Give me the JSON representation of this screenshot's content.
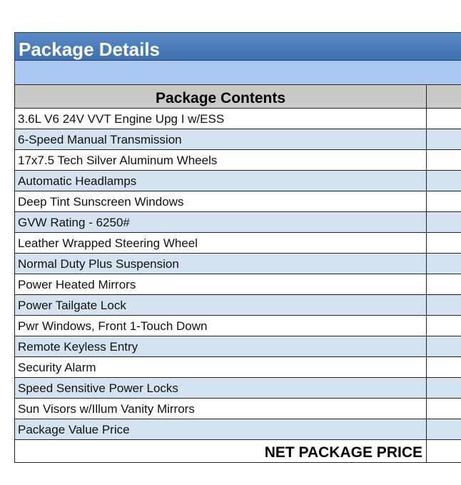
{
  "title": "Package Details",
  "table": {
    "header": "Package Contents",
    "rows": [
      "3.6L V6 24V VVT Engine Upg I w/ESS",
      "6-Speed Manual Transmission",
      "17x7.5 Tech Silver Aluminum Wheels",
      "Automatic Headlamps",
      "Deep Tint Sunscreen Windows",
      "GVW Rating - 6250#",
      "Leather Wrapped Steering Wheel",
      "Normal Duty Plus Suspension",
      "Power Heated Mirrors",
      "Power Tailgate Lock",
      "Pwr Windows, Front 1-Touch Down",
      "Remote Keyless Entry",
      "Security Alarm",
      "Speed Sensitive Power Locks",
      "Sun Visors w/Illum Vanity Mirrors",
      "Package Value Price"
    ],
    "footer": "NET PACKAGE PRICE"
  }
}
